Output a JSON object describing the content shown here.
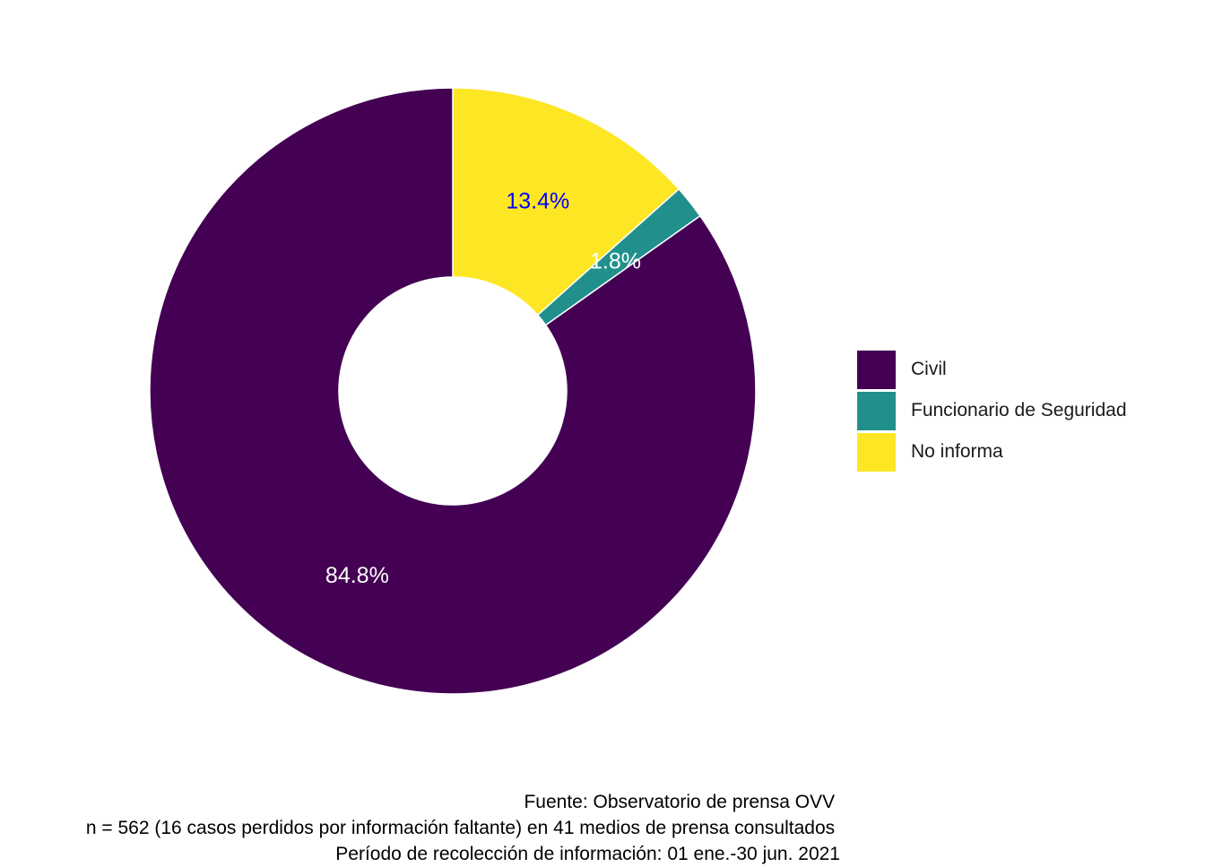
{
  "chart_data": {
    "type": "pie",
    "variant": "donut",
    "title": "",
    "categories": [
      "Civil",
      "Funcionario de Seguridad",
      "No informa"
    ],
    "values": [
      84.8,
      1.8,
      13.4
    ],
    "labels": [
      "84.8%",
      "1.8%",
      "13.4%"
    ],
    "colors": [
      "#440154",
      "#21908C",
      "#FDE725"
    ],
    "label_colors": [
      "#ffffff",
      "#ffffff",
      "#0000ff"
    ],
    "legend": {
      "placement": "right",
      "entries": [
        "Civil",
        "Funcionario de Seguridad",
        "No informa"
      ]
    }
  },
  "caption": {
    "lines": [
      "Fuente: Observatorio de prensa OVV ",
      "n = 562 (16 casos perdidos por información faltante) en 41 medios de prensa consultados ",
      "Período de recolección de información: 01 ene.-30 jun. 2021"
    ]
  }
}
